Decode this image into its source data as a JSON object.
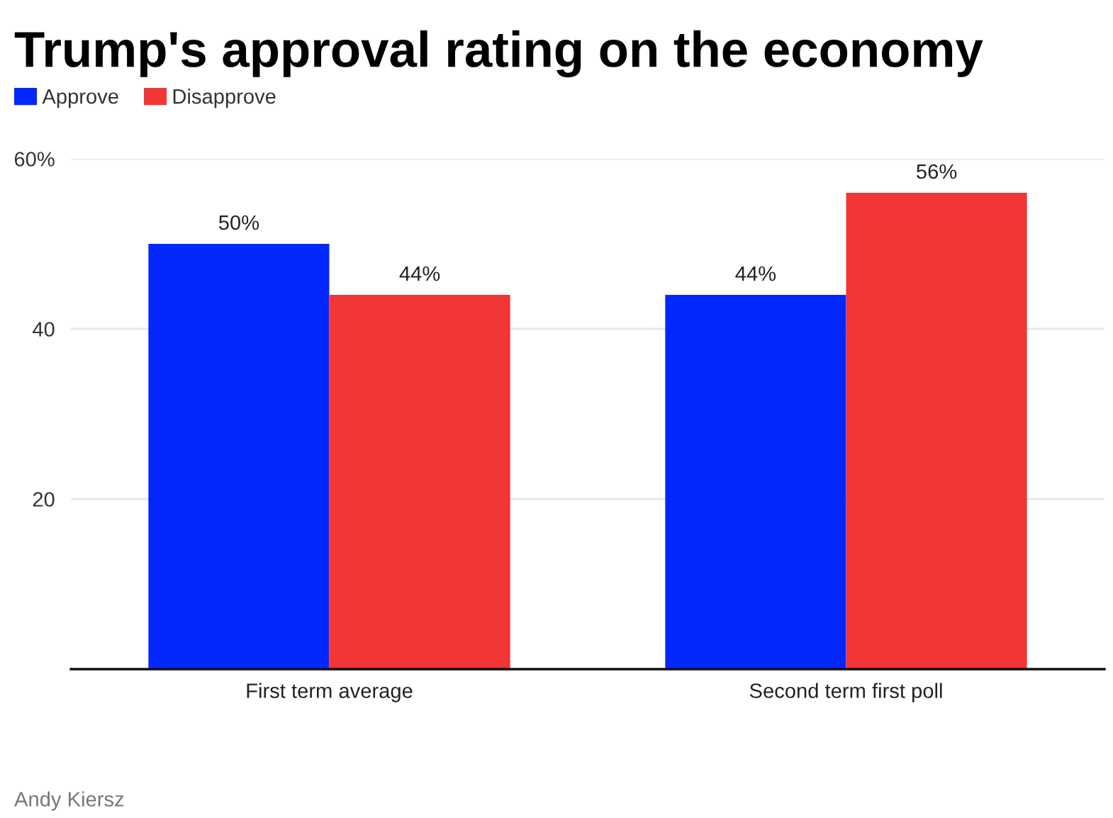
{
  "chart_data": {
    "type": "bar",
    "title": "Trump's approval rating on the economy",
    "categories": [
      "First term average",
      "Second term first poll"
    ],
    "series": [
      {
        "name": "Approve",
        "color": "#0328fe",
        "values": [
          50,
          44
        ],
        "value_labels": [
          "50%",
          "44%"
        ]
      },
      {
        "name": "Disapprove",
        "color": "#f23535",
        "values": [
          44,
          56
        ],
        "value_labels": [
          "44%",
          "56%"
        ]
      }
    ],
    "ylim": [
      0,
      60
    ],
    "yticks": [
      20,
      40,
      {
        "value": 60,
        "label": "60%"
      }
    ],
    "grid": "y",
    "legend": "top left",
    "annotations": [
      "Andy Kiersz"
    ]
  }
}
